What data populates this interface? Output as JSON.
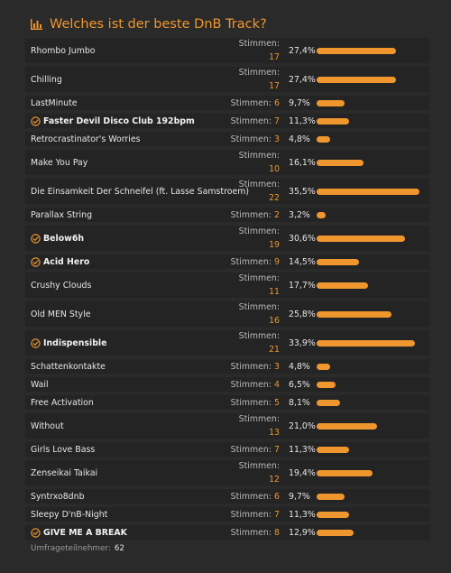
{
  "title": "Welches ist der beste DnB Track?",
  "votes_label": "Stimmen:",
  "max_percent": 35.5,
  "colors": {
    "accent": "#f0962e",
    "background": "#2a2a2a",
    "row": "#242424"
  },
  "options": [
    {
      "label": "Rhombo Jumbo",
      "votes": "17",
      "percent": "27,4%",
      "value": 27.4,
      "chosen": false,
      "stacked": true
    },
    {
      "label": "Chilling",
      "votes": "17",
      "percent": "27,4%",
      "value": 27.4,
      "chosen": false,
      "stacked": true
    },
    {
      "label": "LastMinute",
      "votes": "6",
      "percent": "9,7%",
      "value": 9.7,
      "chosen": false,
      "stacked": false
    },
    {
      "label": "Faster Devil Disco Club 192bpm",
      "votes": "7",
      "percent": "11,3%",
      "value": 11.3,
      "chosen": true,
      "stacked": false
    },
    {
      "label": "Retrocrastinator's Worries",
      "votes": "3",
      "percent": "4,8%",
      "value": 4.8,
      "chosen": false,
      "stacked": false
    },
    {
      "label": "Make You Pay",
      "votes": "10",
      "percent": "16,1%",
      "value": 16.1,
      "chosen": false,
      "stacked": true
    },
    {
      "label": "Die Einsamkeit Der Schneifel (ft. Lasse Samstroem)",
      "votes": "22",
      "percent": "35,5%",
      "value": 35.5,
      "chosen": false,
      "stacked": true
    },
    {
      "label": "Parallax String",
      "votes": "2",
      "percent": "3,2%",
      "value": 3.2,
      "chosen": false,
      "stacked": false
    },
    {
      "label": "Below6h",
      "votes": "19",
      "percent": "30,6%",
      "value": 30.6,
      "chosen": true,
      "stacked": true
    },
    {
      "label": "Acid Hero",
      "votes": "9",
      "percent": "14,5%",
      "value": 14.5,
      "chosen": true,
      "stacked": false
    },
    {
      "label": "Crushy Clouds",
      "votes": "11",
      "percent": "17,7%",
      "value": 17.7,
      "chosen": false,
      "stacked": true
    },
    {
      "label": "Old MEN Style",
      "votes": "16",
      "percent": "25,8%",
      "value": 25.8,
      "chosen": false,
      "stacked": true
    },
    {
      "label": "Indispensible",
      "votes": "21",
      "percent": "33,9%",
      "value": 33.9,
      "chosen": true,
      "stacked": true
    },
    {
      "label": "Schattenkontakte",
      "votes": "3",
      "percent": "4,8%",
      "value": 4.8,
      "chosen": false,
      "stacked": false
    },
    {
      "label": "Wail",
      "votes": "4",
      "percent": "6,5%",
      "value": 6.5,
      "chosen": false,
      "stacked": false
    },
    {
      "label": "Free Activation",
      "votes": "5",
      "percent": "8,1%",
      "value": 8.1,
      "chosen": false,
      "stacked": false
    },
    {
      "label": "Without",
      "votes": "13",
      "percent": "21,0%",
      "value": 21.0,
      "chosen": false,
      "stacked": true
    },
    {
      "label": "Girls Love Bass",
      "votes": "7",
      "percent": "11,3%",
      "value": 11.3,
      "chosen": false,
      "stacked": false
    },
    {
      "label": "Zenseikai Taikai",
      "votes": "12",
      "percent": "19,4%",
      "value": 19.4,
      "chosen": false,
      "stacked": true
    },
    {
      "label": "Syntrxo8dnb",
      "votes": "6",
      "percent": "9,7%",
      "value": 9.7,
      "chosen": false,
      "stacked": false
    },
    {
      "label": "Sleepy D'nB-Night",
      "votes": "7",
      "percent": "11,3%",
      "value": 11.3,
      "chosen": false,
      "stacked": false
    },
    {
      "label": "GIVE ME A BREAK",
      "votes": "8",
      "percent": "12,9%",
      "value": 12.9,
      "chosen": true,
      "stacked": false
    }
  ],
  "footer": {
    "label": "Umfrageteilnehmer:",
    "count": "62"
  }
}
